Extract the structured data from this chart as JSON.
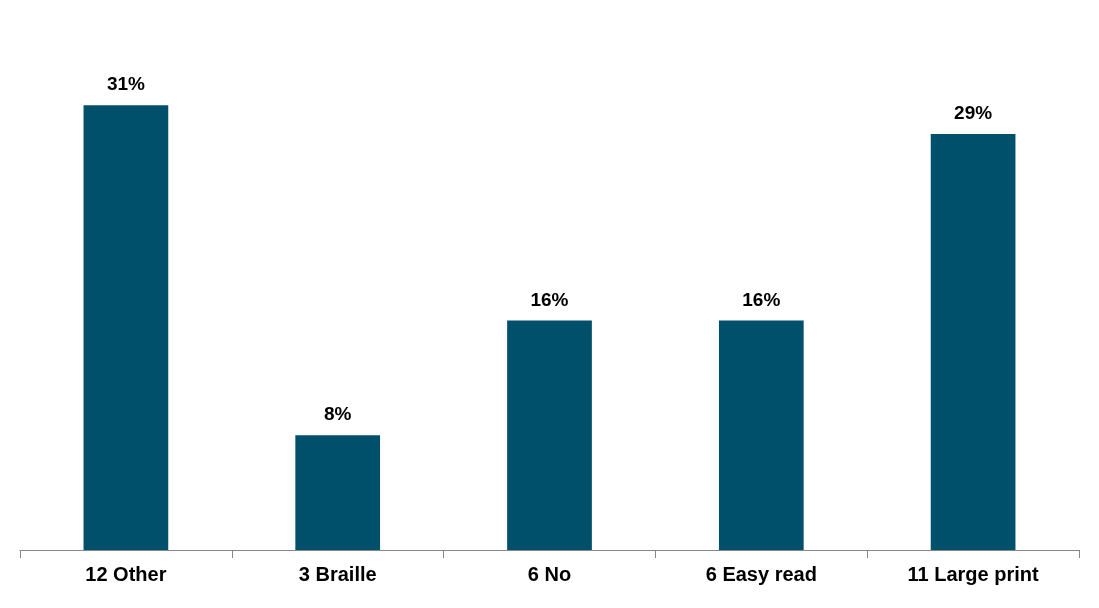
{
  "chart_data": {
    "type": "bar",
    "categories": [
      "12 Other",
      "3 Braille",
      "6 No",
      "6 Easy read",
      "11 Large print"
    ],
    "values": [
      31,
      8,
      16,
      16,
      29
    ],
    "value_labels": [
      "31%",
      "8%",
      "16%",
      "16%",
      "29%"
    ],
    "color": "#004f6b"
  }
}
